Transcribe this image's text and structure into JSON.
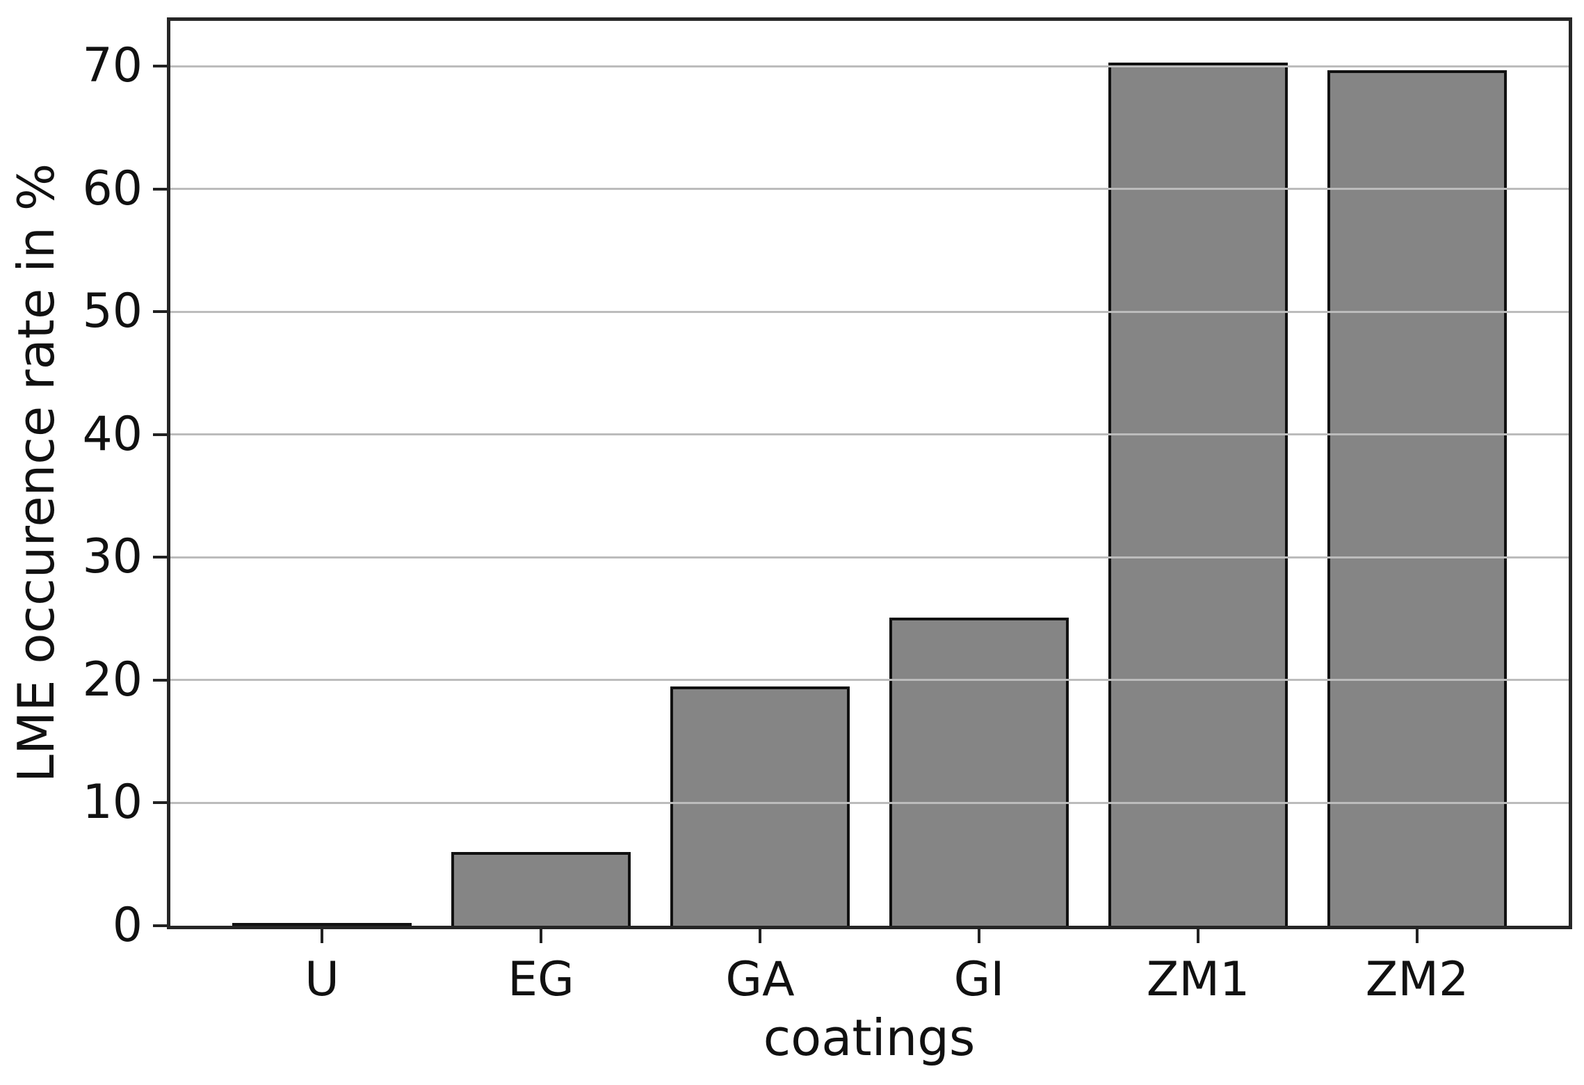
{
  "chart_data": {
    "type": "bar",
    "categories": [
      "U",
      "EG",
      "GA",
      "GI",
      "ZM1",
      "ZM2"
    ],
    "values": [
      0,
      6,
      19.5,
      25.1,
      70.3,
      69.7
    ],
    "title": "",
    "xlabel": "coatings",
    "ylabel": "LME occurence rate in %",
    "yticks": [
      0,
      10,
      20,
      30,
      40,
      50,
      60,
      70
    ],
    "ylim": [
      0,
      73.7
    ],
    "legend": "none",
    "grid": "horizontal gridlines drawn over bars",
    "bar_color": "#858585",
    "bar_edge_color": "#111111",
    "gridline_color": "#bcbcbc",
    "spine_color": "#262626",
    "background_color": "#ffffff"
  }
}
